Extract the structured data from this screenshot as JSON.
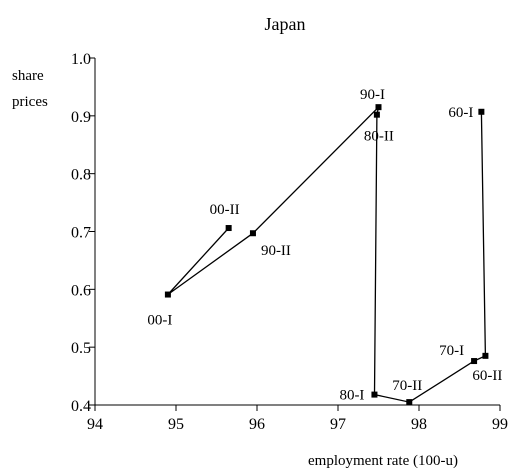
{
  "chart_data": {
    "type": "line",
    "title": "Japan",
    "xlabel": "employment rate (100-u)",
    "ylabel": "share prices",
    "xlim": [
      94,
      99
    ],
    "ylim": [
      0.4,
      1.0
    ],
    "xticks": [
      "94",
      "95",
      "96",
      "97",
      "98",
      "99"
    ],
    "yticks": [
      "0.4",
      "0.5",
      "0.6",
      "0.7",
      "0.8",
      "0.9",
      "1.0"
    ],
    "points": [
      {
        "label": "60-I",
        "x": 98.77,
        "y": 0.907
      },
      {
        "label": "60-II",
        "x": 98.82,
        "y": 0.485
      },
      {
        "label": "70-I",
        "x": 98.68,
        "y": 0.476
      },
      {
        "label": "70-II",
        "x": 97.88,
        "y": 0.405
      },
      {
        "label": "80-I",
        "x": 97.45,
        "y": 0.418
      },
      {
        "label": "80-II",
        "x": 97.48,
        "y": 0.902
      },
      {
        "label": "90-I",
        "x": 97.5,
        "y": 0.915
      },
      {
        "label": "90-II",
        "x": 95.95,
        "y": 0.697
      },
      {
        "label": "00-I",
        "x": 94.9,
        "y": 0.591
      },
      {
        "label": "00-II",
        "x": 95.65,
        "y": 0.706
      }
    ]
  },
  "colors": {
    "line": "#000000",
    "marker": "#000000"
  }
}
